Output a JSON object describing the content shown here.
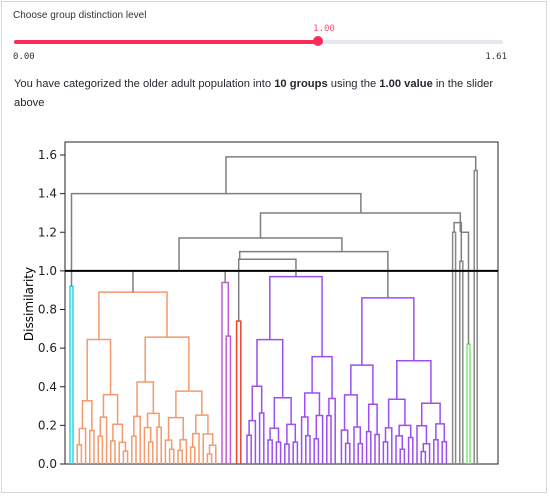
{
  "slider": {
    "label": "Choose group distinction level",
    "value": "1.00",
    "value_number": 1.0,
    "min": "0.00",
    "max": "1.61",
    "min_number": 0.0,
    "max_number": 1.61,
    "accent_color": "#ff2b5b"
  },
  "summary": {
    "prefix": "You have categorized the older adult population into ",
    "groups": "10 groups",
    "middle": " using the ",
    "value_text": "1.00 value",
    "suffix": " in the slider above"
  },
  "chart_data": {
    "type": "dendrogram",
    "ylabel": "Dissimilarity",
    "xlabel": "",
    "ylim": [
      0,
      1.6
    ],
    "yticks": [
      "0.0",
      "0.2",
      "0.4",
      "0.6",
      "0.8",
      "1.0",
      "1.2",
      "1.4",
      "1.6"
    ],
    "cut_line": 1.0,
    "grid": false,
    "clusters": [
      {
        "color": "#29d8e3",
        "height": 0.92
      },
      {
        "color": "#f39a6e",
        "height": 0.89
      },
      {
        "color": "#c25bd6",
        "height": 0.94
      },
      {
        "color": "#e8462a",
        "height": 0.74
      },
      {
        "color": "#9b4ff0",
        "height": 0.97
      },
      {
        "color": "#9b4ff0",
        "height": 0.86
      },
      {
        "color": "#888888",
        "height": 1.2
      },
      {
        "color": "#888888",
        "height": 1.05
      },
      {
        "color": "#7ee87a",
        "height": 0.62
      },
      {
        "color": "#888888",
        "height": 1.52
      }
    ],
    "above_cut_merges": [
      1.0,
      1.17,
      1.1,
      1.3,
      1.4,
      1.59
    ]
  }
}
